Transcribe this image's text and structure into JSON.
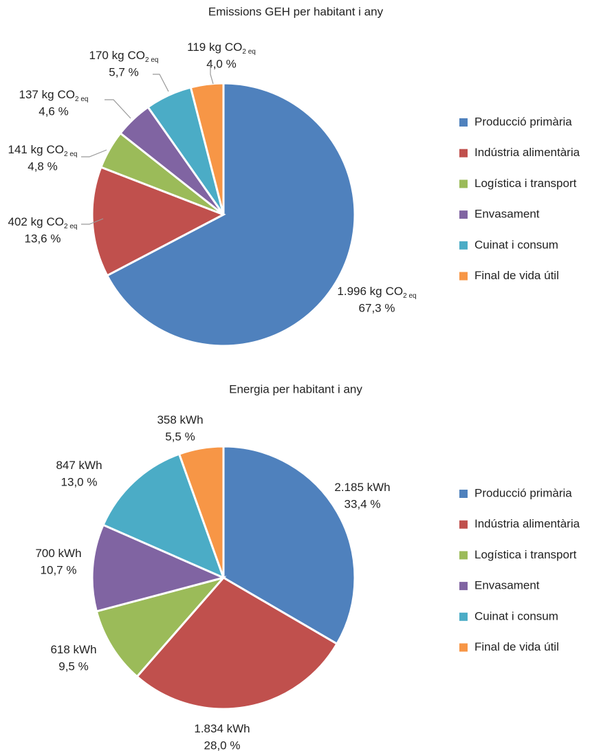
{
  "chart_data": [
    {
      "type": "pie",
      "title": "Emissions GEH per habitant i any",
      "categories": [
        "Producció primària",
        "Indústria alimentària",
        "Logística i transport",
        "Envasament",
        "Cuinat i consum",
        "Final de vida útil"
      ],
      "colors": [
        "#4f81bd",
        "#c0504d",
        "#9bbb59",
        "#8064a2",
        "#4bacc6",
        "#f79646"
      ],
      "values": [
        1996,
        402,
        141,
        137,
        170,
        119
      ],
      "value_labels": [
        "1.996 kg",
        "402 kg",
        "141 kg",
        "137 kg",
        "170 kg",
        "119 kg"
      ],
      "unit": "CO",
      "unit_subscript": "2 eq",
      "percentages": [
        67.3,
        13.6,
        4.8,
        4.6,
        5.7,
        4.0
      ],
      "percentage_labels": [
        "67,3 %",
        "13,6 %",
        "4,8 %",
        "4,6 %",
        "5,7 %",
        "4,0 %"
      ]
    },
    {
      "type": "pie",
      "title": "Energia per habitant i any",
      "categories": [
        "Producció primària",
        "Indústria alimentària",
        "Logística i transport",
        "Envasament",
        "Cuinat i consum",
        "Final de vida útil"
      ],
      "colors": [
        "#4f81bd",
        "#c0504d",
        "#9bbb59",
        "#8064a2",
        "#4bacc6",
        "#f79646"
      ],
      "values": [
        2185,
        1834,
        618,
        700,
        847,
        358
      ],
      "value_labels": [
        "2.185 kWh",
        "1.834 kWh",
        "618 kWh",
        "700 kWh",
        "847 kWh",
        "358 kWh"
      ],
      "percentages": [
        33.4,
        28.0,
        9.5,
        10.7,
        13.0,
        5.5
      ],
      "percentage_labels": [
        "33,4 %",
        "28,0 %",
        "9,5 %",
        "10,7 %",
        "13,0 %",
        "5,5 %"
      ]
    }
  ]
}
